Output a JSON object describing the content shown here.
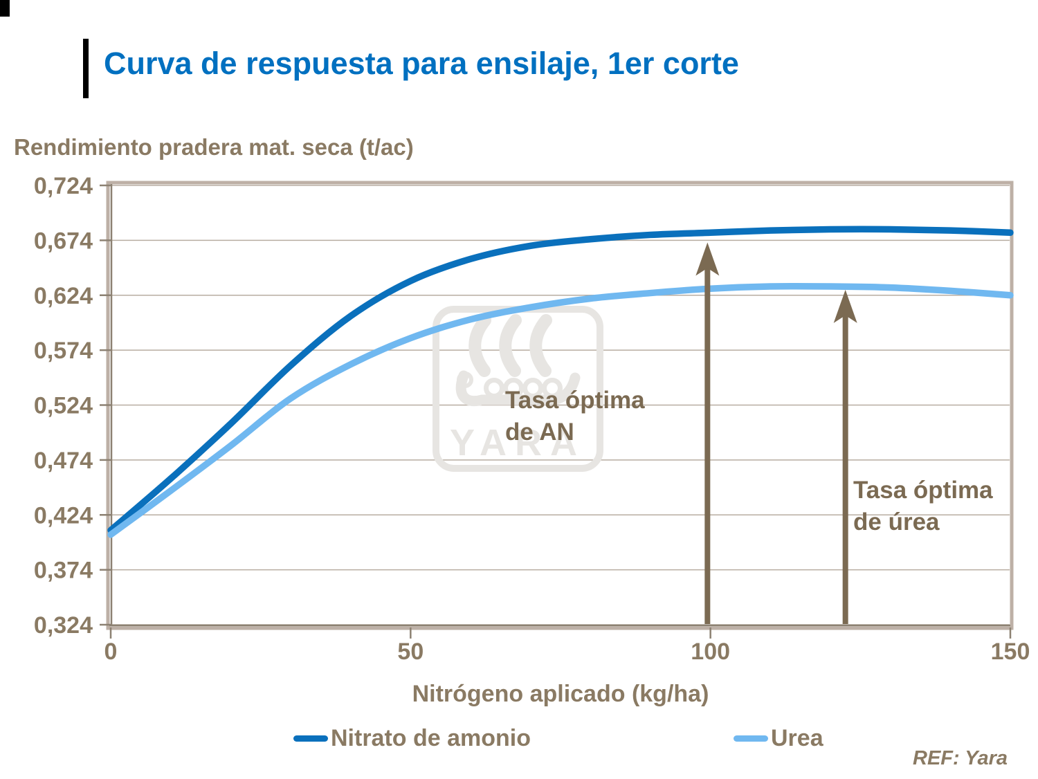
{
  "page": {
    "title": "Curva de respuesta para ensilaje, 1er corte",
    "ref": "REF: Yara",
    "watermark_text": "YARA"
  },
  "colors": {
    "title": "#0070C0",
    "axis_text": "#8A7A63",
    "annotation": "#7B6A52",
    "grid": "#B7ACA1",
    "frame": "#BDB0A6",
    "axis_line": "#8C8172",
    "watermark": "#E7E5E2",
    "an_line": "#0A70BC",
    "urea_line": "#70B8F0"
  },
  "chart_data": {
    "type": "line",
    "title": "Curva de respuesta para ensilaje, 1er corte",
    "xlabel": "Nitrógeno aplicado (kg/ha)",
    "ylabel": "Rendimiento pradera mat. seca (t/ac)",
    "xlim": [
      0,
      150
    ],
    "ylim": [
      0.324,
      0.724
    ],
    "grid": true,
    "legend_position": "bottom",
    "xticks": {
      "values": [
        0,
        50,
        100,
        150
      ],
      "labels": [
        "0",
        "50",
        "100",
        "150"
      ]
    },
    "yticks": {
      "values": [
        0.724,
        0.674,
        0.624,
        0.574,
        0.524,
        0.474,
        0.424,
        0.374,
        0.324
      ],
      "labels": [
        "0,724",
        "0,674",
        "0,624",
        "0,574",
        "0,524",
        "0,474",
        "0,424",
        "0,374",
        "0,324"
      ]
    },
    "x": [
      0,
      10,
      20,
      30,
      40,
      50,
      60,
      70,
      80,
      90,
      100,
      110,
      120,
      130,
      140,
      150
    ],
    "series": [
      {
        "name": "Nitrato de amonio",
        "color": "#0A70BC",
        "values": [
          0.41,
          0.457,
          0.507,
          0.56,
          0.605,
          0.637,
          0.657,
          0.669,
          0.675,
          0.679,
          0.681,
          0.683,
          0.684,
          0.684,
          0.683,
          0.681
        ]
      },
      {
        "name": "Urea",
        "color": "#70B8F0",
        "values": [
          0.406,
          0.446,
          0.487,
          0.53,
          0.561,
          0.585,
          0.602,
          0.613,
          0.621,
          0.626,
          0.63,
          0.632,
          0.632,
          0.631,
          0.628,
          0.624
        ]
      }
    ],
    "annotations": [
      {
        "text": "Tasa óptima de AN",
        "line1": "Tasa óptima",
        "line2": "de AN",
        "arrow_x": 99.5,
        "arrow_tip_y": 0.672
      },
      {
        "text": "Tasa óptima de úrea",
        "line1": "Tasa óptima",
        "line2": "de úrea",
        "arrow_x": 122.5,
        "arrow_tip_y": 0.629
      }
    ]
  }
}
